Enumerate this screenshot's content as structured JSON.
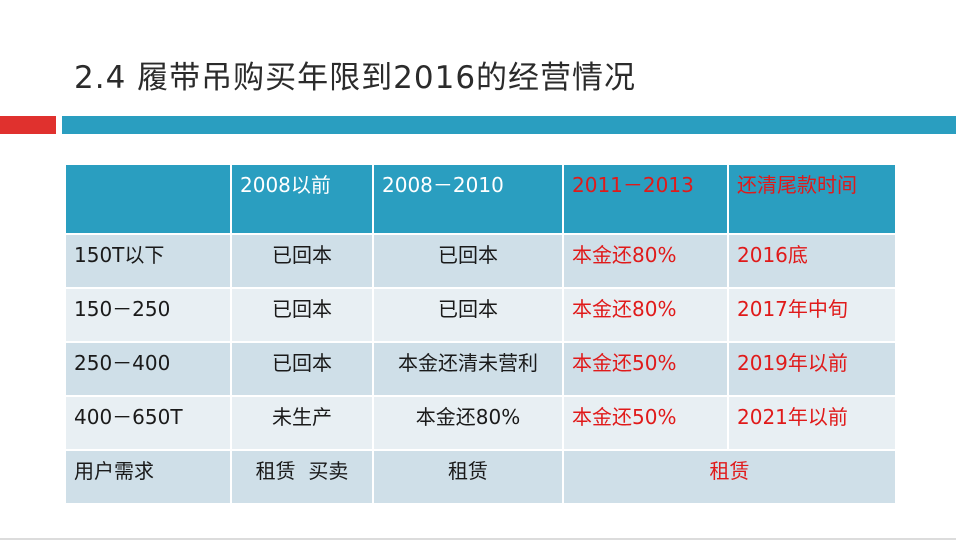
{
  "slide": {
    "title": "2.4 履带吊购买年限到2016的经营情况"
  },
  "table": {
    "headers": [
      "",
      "2008以前",
      "2008－2010",
      "2011－2013",
      "还清尾款时间"
    ],
    "rows": [
      [
        "150T以下",
        "已回本",
        "已回本",
        "本金还80%",
        "2016底"
      ],
      [
        "150－250",
        "已回本",
        "已回本",
        "本金还80%",
        "2017年中旬"
      ],
      [
        "250－400",
        "已回本",
        "本金还清未营利",
        "本金还50%",
        "2019年以前"
      ],
      [
        "400－650T",
        "未生产",
        "本金还80%",
        "本金还50%",
        "2021年以前"
      ]
    ],
    "last_row": {
      "label": "用户需求",
      "col1": "租赁  买卖",
      "col2": "租赁",
      "merged": "租赁"
    }
  },
  "colors": {
    "header_bg": "#2a9ec0",
    "row_odd_bg": "#cfdfe8",
    "row_even_bg": "#e8eff3",
    "highlight_text": "#e01a1a",
    "accent_red": "#e0312e"
  }
}
